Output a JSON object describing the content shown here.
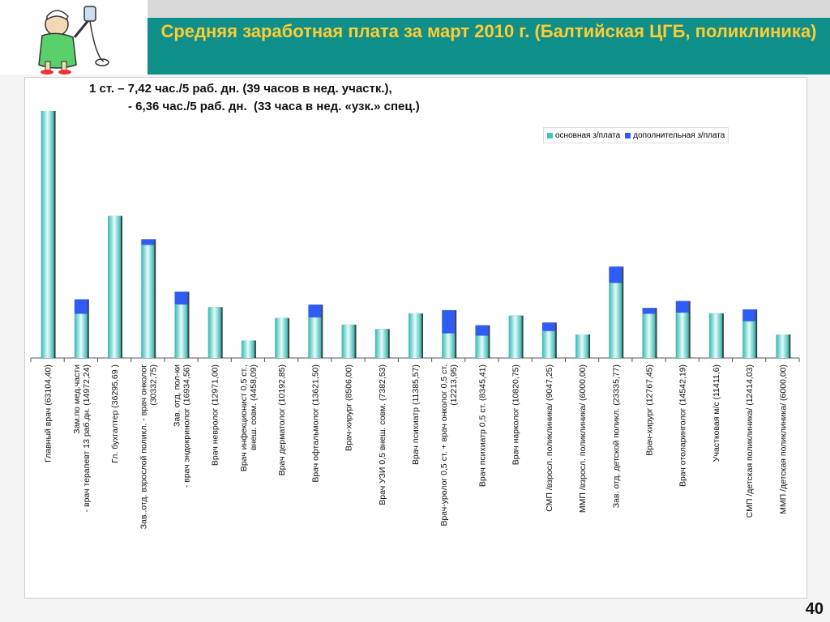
{
  "title": "Средняя заработная плата за март 2010 г. (Балтийская ЦГБ, поликлиника)",
  "subtitle_lines": [
    "1 ст. – 7,42 час./5 раб. дн. (39 часов в нед. участк.),",
    "- 6,36 час./5 раб. дн.  (33 часа в нед. «узк.» спец.)"
  ],
  "page_number": "40",
  "colors": {
    "base": "#3cc7c0",
    "extra": "#2f5cf5",
    "title": "#ffcc33",
    "band": "#0f8f8a"
  },
  "chart_data": {
    "type": "bar",
    "stacked": true,
    "legend_position": "top-right",
    "ylim": [
      0,
      63104
    ],
    "series": [
      {
        "name": "основная з/плата",
        "values": [
          63104,
          11300,
          36295,
          28900,
          13700,
          12971,
          4458,
          10192,
          10400,
          8506,
          7382,
          11385,
          6300,
          5700,
          10820,
          6900,
          6000,
          19200,
          11300,
          11600,
          11411,
          9400,
          6000
        ]
      },
      {
        "name": "дополнительная з/плата",
        "values": [
          0,
          3672,
          0,
          1433,
          3235,
          0,
          0,
          0,
          3221,
          0,
          0,
          0,
          5914,
          2645,
          0,
          2147,
          0,
          4136,
          1467,
          2942,
          0,
          3014,
          0
        ]
      }
    ],
    "categories": [
      [
        "Главный врач (63104,40)"
      ],
      [
        "Зам.по мед.части",
        "- врач терапевт 13 раб.дн. (14972,24)"
      ],
      [
        "Гл. бухгалтер (36295,69 )"
      ],
      [
        "Зав..отд. взрослой поликл. - врач онколог",
        "(30332,75)"
      ],
      [
        "Зав. отд. пол-ки",
        "- врач эндокринолог (16934,56)"
      ],
      [
        "Врач невролог (12971,00)"
      ],
      [
        "Врач инфекционист 0,5 ст.,",
        "внеш. совм. (4458,09)"
      ],
      [
        "Врач дерматолог (10192,85)"
      ],
      [
        "Врач офтальмолог (13621,50)"
      ],
      [
        "Врач-хирург (8506,00)"
      ],
      [
        "Врач УЗИ 0,5 внеш. совм. (7382,53)"
      ],
      [
        "Врач психиатр (11385,57)"
      ],
      [
        "Врач-уролог 0,5 ст. + врач онколог 0,5 ст.",
        "(12213,95)"
      ],
      [
        "Врач психиатр 0,5 ст. (8345,41)"
      ],
      [
        "Врач нарколог (10820,75)"
      ],
      [
        "СМП /взросл. поликлиника/ (9047,25)"
      ],
      [
        "ММП /взросл. поликлиника/ (6000,00)"
      ],
      [
        "Зав. отд. детской поликл. (23335,77)"
      ],
      [
        "Врач-хирург (12767,45)"
      ],
      [
        "Врач отоларинголог (14542,19)"
      ],
      [
        "Участковая м/с (11411,6)"
      ],
      [
        "СМП /детская поликлиника/ (12414,03)"
      ],
      [
        "ММП /детская поликлиника/ (6000,00)"
      ]
    ]
  }
}
